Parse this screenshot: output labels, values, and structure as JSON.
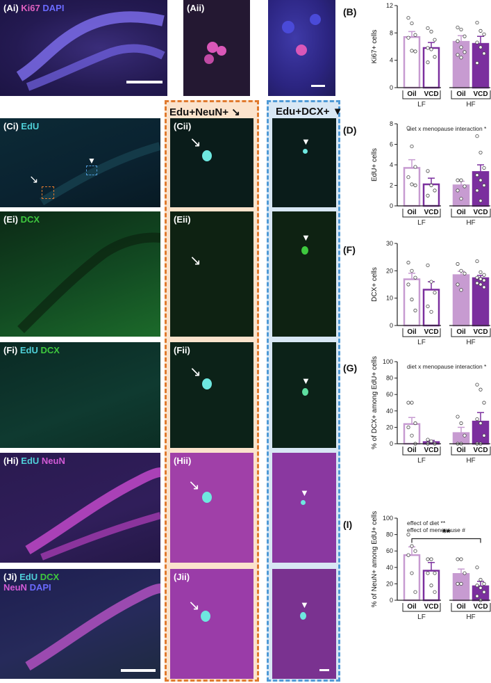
{
  "colors": {
    "ki67": "#e060c0",
    "dapi": "#6a6aff",
    "edu": "#4fd0d8",
    "dcx": "#3ec93e",
    "neun": "#d25ad6",
    "oil_lf": "#c79bd1",
    "vcd_lf": "#7b2f9e",
    "oil_hf": "#c79bd1",
    "vcd_hf": "#7b2f9e",
    "frame_orange": "#e07a2e",
    "frame_blue": "#4f9ad6"
  },
  "images": {
    "Ai": {
      "id": "(Ai)",
      "stains": [
        "Ki67",
        "DAPI"
      ]
    },
    "Aii": {
      "id": "(Aii)"
    },
    "Ci": {
      "id": "(Ci)",
      "stains": [
        "EdU"
      ]
    },
    "Cii": {
      "id": "(Cii)"
    },
    "Ei": {
      "id": "(Ei)",
      "stains": [
        "DCX"
      ]
    },
    "Eii": {
      "id": "(Eii)"
    },
    "Fi": {
      "id": "(Fi)",
      "stains": [
        "EdU",
        "DCX"
      ]
    },
    "Fii": {
      "id": "(Fii)"
    },
    "Hi": {
      "id": "(Hi)",
      "stains": [
        "EdU",
        "NeuN"
      ]
    },
    "Hii": {
      "id": "(Hii)"
    },
    "Ji": {
      "id": "(Ji)",
      "stains": [
        "EdU",
        "DCX",
        "NeuN",
        "DAPI"
      ]
    },
    "Jii": {
      "id": "(Jii)"
    }
  },
  "columns": {
    "edu_neun": "Edu+NeuN+",
    "edu_dcx": "Edu+DCX+"
  },
  "icons": [
    "arrow-icon",
    "arrowhead-icon"
  ],
  "chart_data": [
    {
      "id": "(B)",
      "type": "bar",
      "ylabel": "Ki67+ cells",
      "ylim": [
        0,
        12
      ],
      "yticks": [
        0,
        4,
        8,
        12
      ],
      "note": "",
      "categories": [
        "Oil",
        "VCD",
        "Oil",
        "VCD"
      ],
      "groups": [
        "LF",
        "HF"
      ],
      "values": [
        7.4,
        5.8,
        6.7,
        6.4
      ],
      "errors": [
        0.8,
        0.8,
        0.9,
        1.1
      ],
      "points": [
        [
          10.2,
          9.4,
          7.7,
          7.3,
          5.4,
          5.3
        ],
        [
          8.7,
          8.2,
          7.0,
          5.8,
          5.6,
          4.5,
          3.7
        ],
        [
          8.8,
          8.5,
          7.5,
          6.8,
          5.9,
          5.2,
          4.8,
          4.4
        ],
        [
          9.5,
          8.3,
          7.8,
          6.6,
          5.9,
          5.0,
          3.6
        ]
      ]
    },
    {
      "id": "(D)",
      "type": "bar",
      "ylabel": "EdU+ cells",
      "ylim": [
        0,
        8
      ],
      "yticks": [
        0,
        2,
        4,
        6,
        8
      ],
      "note": "diet x menopause interaction *",
      "categories": [
        "Oil",
        "VCD",
        "Oil",
        "VCD"
      ],
      "groups": [
        "LF",
        "HF"
      ],
      "values": [
        3.7,
        2.1,
        2.0,
        3.3
      ],
      "errors": [
        0.8,
        0.6,
        0.4,
        0.7
      ],
      "points": [
        [
          7.6,
          5.8,
          3.8,
          2.8,
          2.1,
          2.0
        ],
        [
          3.4,
          2.0,
          1.5,
          1.0
        ],
        [
          2.5,
          2.5,
          1.9,
          1.5,
          0.7
        ],
        [
          6.8,
          5.2,
          3.7,
          3.0,
          2.5,
          2.0,
          1.5,
          0.5
        ]
      ]
    },
    {
      "id": "(F)",
      "type": "bar",
      "ylabel": "DCX+ cells",
      "ylim": [
        0,
        30
      ],
      "yticks": [
        0,
        10,
        20,
        30
      ],
      "note": "",
      "categories": [
        "Oil",
        "VCD",
        "Oil",
        "VCD"
      ],
      "groups": [
        "LF",
        "HF"
      ],
      "values": [
        16.9,
        13.1,
        18.4,
        17.3
      ],
      "errors": [
        2.2,
        2.9,
        1.4,
        1.0
      ],
      "points": [
        [
          23.0,
          20.0,
          17.5,
          15.0,
          9.5,
          5.5
        ],
        [
          22.0,
          16.0,
          12.0,
          7.0,
          5.0
        ],
        [
          22.5,
          20.0,
          19.0,
          15.0,
          13.0
        ],
        [
          23.5,
          19.5,
          18.5,
          17.5,
          17.0,
          16.5,
          15.5,
          15.0,
          14.0
        ]
      ]
    },
    {
      "id": "(G)",
      "type": "bar",
      "ylabel": "% of DCX+ among EdU+ cells",
      "ylim": [
        0,
        100
      ],
      "yticks": [
        0,
        20,
        40,
        60,
        80,
        100
      ],
      "note": "diet x menopause interaction *",
      "categories": [
        "Oil",
        "VCD",
        "Oil",
        "VCD"
      ],
      "groups": [
        "LF",
        "HF"
      ],
      "values": [
        24,
        2,
        13,
        27
      ],
      "errors": [
        8,
        2,
        7,
        11
      ],
      "points": [
        [
          50,
          50,
          25,
          20,
          10,
          0
        ],
        [
          5,
          3,
          0,
          0
        ],
        [
          33,
          25,
          10,
          0,
          0
        ],
        [
          72,
          66,
          50,
          30,
          25,
          10,
          0,
          0
        ]
      ]
    },
    {
      "id": "(I)",
      "type": "bar",
      "ylabel": "% of NeuN+ among EdU+ cells",
      "ylim": [
        0,
        100
      ],
      "yticks": [
        0,
        20,
        40,
        60,
        80,
        100
      ],
      "note": "effect of diet **\neffect of menopause #",
      "categories": [
        "Oil",
        "VCD",
        "Oil",
        "VCD"
      ],
      "groups": [
        "LF",
        "HF"
      ],
      "values": [
        55,
        36,
        32,
        17
      ],
      "errors": [
        10,
        10,
        6,
        6
      ],
      "points": [
        [
          80,
          66,
          60,
          55,
          33,
          10
        ],
        [
          50,
          50,
          33,
          33,
          18,
          10
        ],
        [
          50,
          50,
          33,
          20,
          20
        ],
        [
          40,
          25,
          20,
          18,
          15,
          10,
          5,
          0
        ]
      ],
      "significance": "**"
    }
  ]
}
